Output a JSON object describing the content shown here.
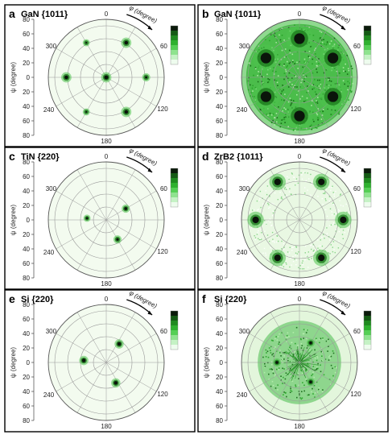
{
  "chart_data": [
    {
      "type": "polar-pole-figure",
      "panel_label": "a",
      "title": "GaN {10̅1̅ 1}",
      "title_text": "GaN {1011}",
      "ylabel": "ψ (degree)",
      "phi_label": "φ (degree)",
      "y_ticks": [
        "80",
        "60",
        "40",
        "20",
        "0",
        "20",
        "40",
        "60",
        "80"
      ],
      "angle_labels": [
        "0",
        "60",
        "120",
        "180",
        "240",
        "300"
      ],
      "background": "#f3fbef",
      "spots": [
        {
          "phi": 0,
          "psi": 0,
          "intensity": 1.0,
          "size": 1.0
        },
        {
          "phi": 30,
          "psi": 62,
          "intensity": 0.9,
          "size": 1.0
        },
        {
          "phi": 90,
          "psi": 62,
          "intensity": 0.7,
          "size": 0.8
        },
        {
          "phi": 150,
          "psi": 62,
          "intensity": 0.9,
          "size": 1.0
        },
        {
          "phi": 210,
          "psi": 62,
          "intensity": 0.6,
          "size": 0.7
        },
        {
          "phi": 270,
          "psi": 62,
          "intensity": 0.9,
          "size": 1.0
        },
        {
          "phi": 330,
          "psi": 62,
          "intensity": 0.6,
          "size": 0.7
        }
      ]
    },
    {
      "type": "polar-pole-figure",
      "panel_label": "b",
      "title_text": "GaN {1011}",
      "ylabel": "ψ (degree)",
      "phi_label": "φ (degree)",
      "y_ticks": [
        "80",
        "60",
        "40",
        "20",
        "0",
        "20",
        "40",
        "60",
        "80"
      ],
      "angle_labels": [
        "0",
        "60",
        "120",
        "180",
        "240",
        "300"
      ],
      "background": "#8fd88f",
      "fill_radius": 0.92,
      "fill_color": "#3fb83f",
      "spots": [
        {
          "phi": 0,
          "psi": 60,
          "intensity": 1.0,
          "size": 2.6
        },
        {
          "phi": 60,
          "psi": 60,
          "intensity": 1.0,
          "size": 2.6
        },
        {
          "phi": 120,
          "psi": 60,
          "intensity": 1.0,
          "size": 2.6
        },
        {
          "phi": 180,
          "psi": 60,
          "intensity": 1.0,
          "size": 2.6
        },
        {
          "phi": 240,
          "psi": 60,
          "intensity": 1.0,
          "size": 2.6
        },
        {
          "phi": 300,
          "psi": 60,
          "intensity": 1.0,
          "size": 2.6
        }
      ]
    },
    {
      "type": "polar-pole-figure",
      "panel_label": "c",
      "title_text": "TiN {220}",
      "ylabel": "ψ (degree)",
      "phi_label": "φ (degree)",
      "y_ticks": [
        "80",
        "60",
        "40",
        "20",
        "0",
        "20",
        "40",
        "60",
        "80"
      ],
      "angle_labels": [
        "0",
        "60",
        "120",
        "180",
        "240",
        "300"
      ],
      "background": "#f3fbef",
      "spots": [
        {
          "phi": 60,
          "psi": 35,
          "intensity": 0.9,
          "size": 0.8
        },
        {
          "phi": 150,
          "psi": 35,
          "intensity": 0.8,
          "size": 0.8
        },
        {
          "phi": 275,
          "psi": 30,
          "intensity": 0.8,
          "size": 0.7
        }
      ]
    },
    {
      "type": "polar-pole-figure",
      "panel_label": "d",
      "title_text": "ZrB2 {1011}",
      "ylabel": "ψ (degree)",
      "phi_label": "φ (degree)",
      "y_ticks": [
        "80",
        "60",
        "40",
        "20",
        "0",
        "20",
        "40",
        "60",
        "80"
      ],
      "angle_labels": [
        "0",
        "60",
        "120",
        "180",
        "240",
        "300"
      ],
      "background": "#e9f8e3",
      "spots": [
        {
          "phi": 30,
          "psi": 68,
          "intensity": 1.0,
          "size": 1.6
        },
        {
          "phi": 90,
          "psi": 68,
          "intensity": 1.0,
          "size": 1.6
        },
        {
          "phi": 150,
          "psi": 68,
          "intensity": 1.0,
          "size": 1.6
        },
        {
          "phi": 210,
          "psi": 68,
          "intensity": 1.0,
          "size": 1.6
        },
        {
          "phi": 270,
          "psi": 68,
          "intensity": 1.0,
          "size": 1.6
        },
        {
          "phi": 330,
          "psi": 68,
          "intensity": 1.0,
          "size": 1.6
        }
      ]
    },
    {
      "type": "polar-pole-figure",
      "panel_label": "e",
      "title_text": "Si {220}",
      "ylabel": "ψ (degree)",
      "phi_label": "φ (degree)",
      "y_ticks": [
        "80",
        "60",
        "40",
        "20",
        "0",
        "20",
        "40",
        "60",
        "80"
      ],
      "angle_labels": [
        "0",
        "60",
        "120",
        "180",
        "240",
        "300"
      ],
      "background": "#f3fbef",
      "spots": [
        {
          "phi": 35,
          "psi": 35,
          "intensity": 1.0,
          "size": 0.9
        },
        {
          "phi": 155,
          "psi": 35,
          "intensity": 1.0,
          "size": 0.9
        },
        {
          "phi": 275,
          "psi": 35,
          "intensity": 1.0,
          "size": 0.9
        }
      ]
    },
    {
      "type": "polar-pole-figure",
      "panel_label": "f",
      "title_text": "Si {220}",
      "ylabel": "ψ (degree)",
      "phi_label": "φ (degree)",
      "y_ticks": [
        "80",
        "60",
        "40",
        "20",
        "0",
        "20",
        "40",
        "60",
        "80"
      ],
      "angle_labels": [
        "0",
        "60",
        "120",
        "180",
        "240",
        "300"
      ],
      "background": "#e3f6dc",
      "fill_radius": 0.72,
      "fill_color": "#7fd07f",
      "spots": [
        {
          "phi": 30,
          "psi": 35,
          "intensity": 0.9,
          "size": 0.8
        },
        {
          "phi": 150,
          "psi": 35,
          "intensity": 0.9,
          "size": 0.8
        },
        {
          "phi": 270,
          "psi": 35,
          "intensity": 0.9,
          "size": 0.8
        }
      ]
    }
  ],
  "colorbar_colors": [
    "#0a1a0a",
    "#145a14",
    "#1f8a1f",
    "#2fb12f",
    "#55cf55",
    "#8fe38f",
    "#c5f2c5",
    "#eefcee"
  ]
}
